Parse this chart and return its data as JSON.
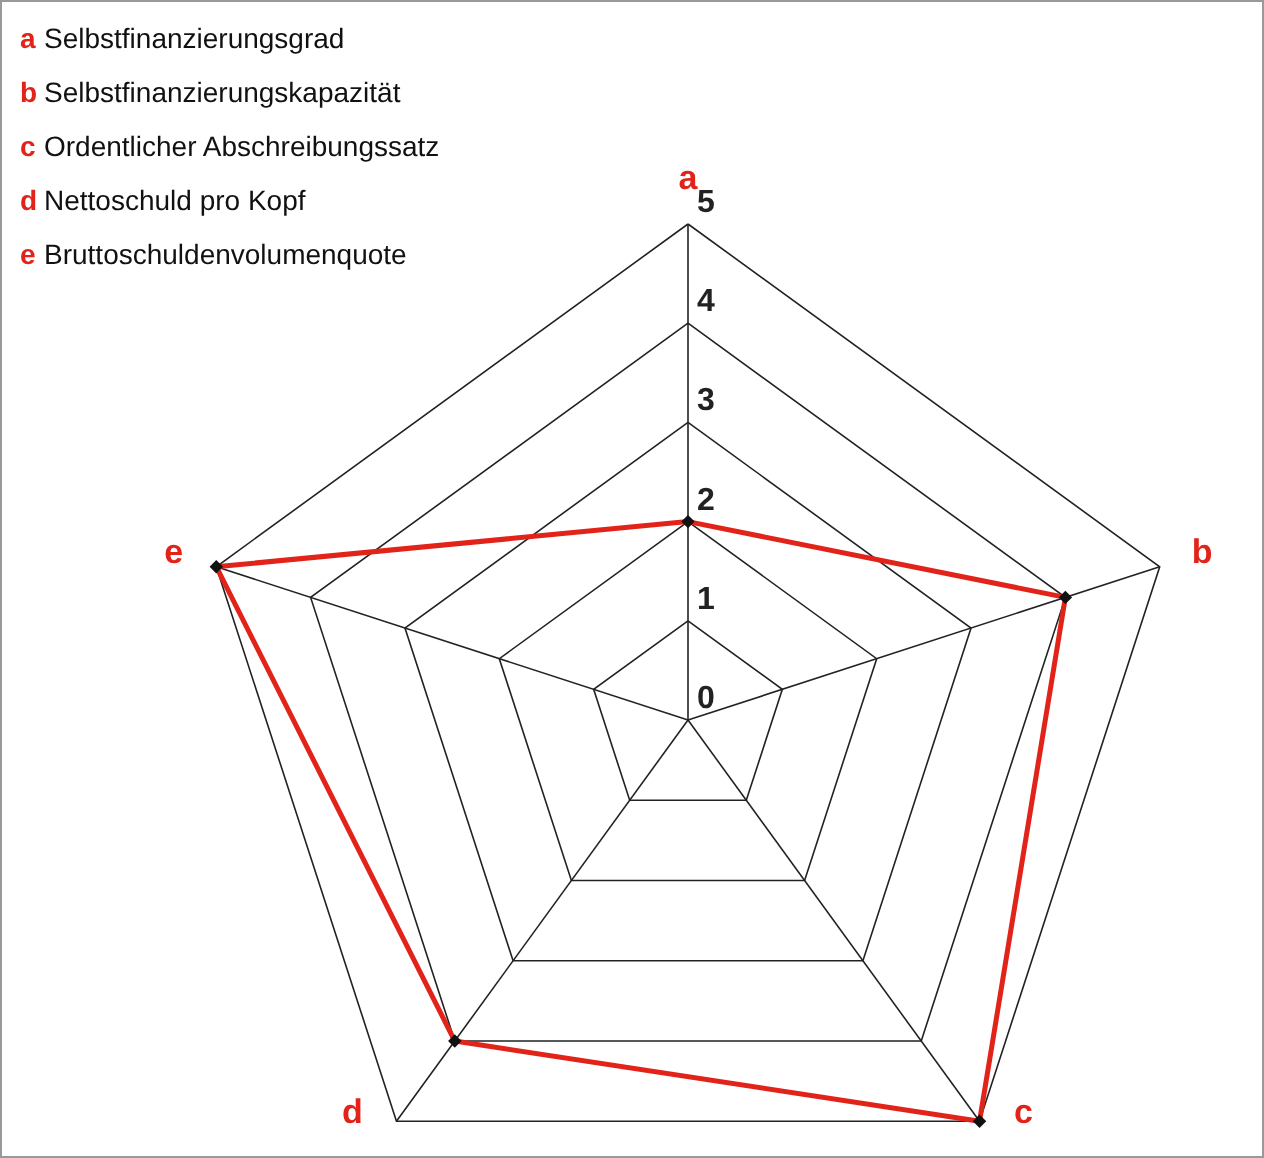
{
  "chart_data": {
    "type": "radar",
    "categories": [
      "a",
      "b",
      "c",
      "d",
      "e"
    ],
    "series": [
      {
        "color": "#e2231a",
        "values": [
          2,
          4,
          5,
          4,
          5
        ]
      }
    ],
    "ylim": [
      0,
      5
    ],
    "yticks": [
      0,
      1,
      2,
      3,
      4,
      5
    ],
    "grid": true,
    "marker": "diamond",
    "line_style": "solid",
    "annotations": [
      "a Selbstfinanzierungsgrad",
      "b Selbstfinanzierungskapazität",
      "c Ordentlicher Abschreibungssatz",
      "d Nettoschuld pro Kopf",
      "e Bruttoschuldenvolumenquote"
    ]
  }
}
